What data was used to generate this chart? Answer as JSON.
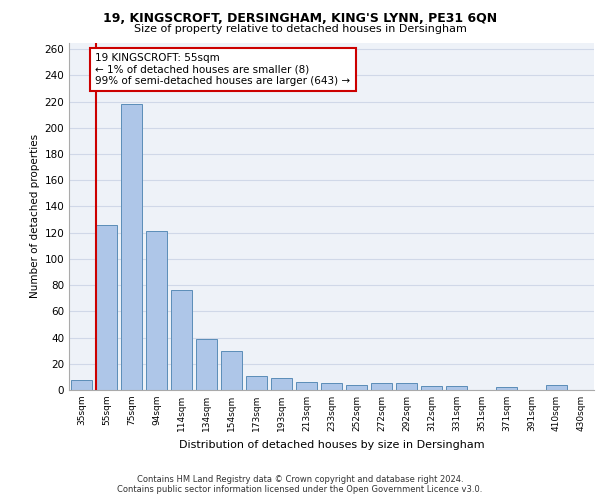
{
  "title_line1": "19, KINGSCROFT, DERSINGHAM, KING'S LYNN, PE31 6QN",
  "title_line2": "Size of property relative to detached houses in Dersingham",
  "xlabel": "Distribution of detached houses by size in Dersingham",
  "ylabel": "Number of detached properties",
  "categories": [
    "35sqm",
    "55sqm",
    "75sqm",
    "94sqm",
    "114sqm",
    "134sqm",
    "154sqm",
    "173sqm",
    "193sqm",
    "213sqm",
    "233sqm",
    "252sqm",
    "272sqm",
    "292sqm",
    "312sqm",
    "331sqm",
    "351sqm",
    "371sqm",
    "391sqm",
    "410sqm",
    "430sqm"
  ],
  "values": [
    8,
    126,
    218,
    121,
    76,
    39,
    30,
    11,
    9,
    6,
    5,
    4,
    5,
    5,
    3,
    3,
    0,
    2,
    0,
    4,
    0
  ],
  "bar_color": "#aec6e8",
  "bar_edge_color": "#5b8db8",
  "vline_color": "#cc0000",
  "vline_index": 1,
  "annotation_text": "19 KINGSCROFT: 55sqm\n← 1% of detached houses are smaller (8)\n99% of semi-detached houses are larger (643) →",
  "annotation_box_color": "#ffffff",
  "annotation_box_edge_color": "#cc0000",
  "ylim": [
    0,
    265
  ],
  "yticks": [
    0,
    20,
    40,
    60,
    80,
    100,
    120,
    140,
    160,
    180,
    200,
    220,
    240,
    260
  ],
  "grid_color": "#d0d8e8",
  "bg_color": "#eef2f8",
  "footer_line1": "Contains HM Land Registry data © Crown copyright and database right 2024.",
  "footer_line2": "Contains public sector information licensed under the Open Government Licence v3.0."
}
